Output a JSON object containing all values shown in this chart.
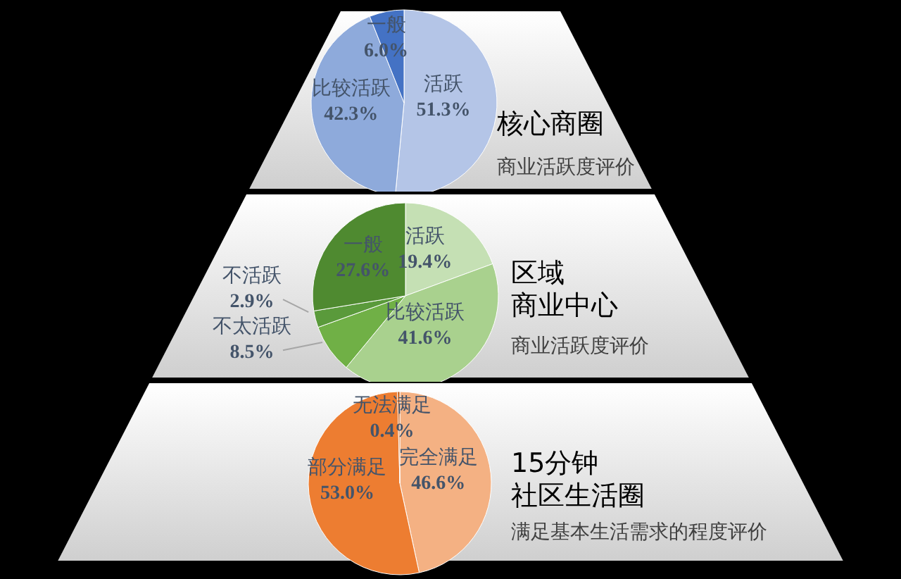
{
  "chart_data": [
    {
      "type": "pie",
      "title": "核心商圈",
      "subtitle": "商业活跃度评价",
      "categories": [
        "活跃",
        "比较活跃",
        "一般"
      ],
      "values": [
        51.3,
        42.3,
        6.0
      ],
      "value_labels": [
        "51.3%",
        "42.3%",
        "6.0%"
      ],
      "colors": [
        "#b4c5e7",
        "#8eaadb",
        "#4472c4"
      ]
    },
    {
      "type": "pie",
      "title": "区域商业中心",
      "subtitle": "商业活跃度评价",
      "categories": [
        "活跃",
        "比较活跃",
        "不太活跃",
        "不活跃",
        "一般"
      ],
      "values": [
        19.4,
        41.6,
        8.5,
        2.9,
        27.6
      ],
      "value_labels": [
        "19.4%",
        "41.6%",
        "8.5%",
        "2.9%",
        "27.6%"
      ],
      "colors": [
        "#c5e0b4",
        "#a9d18e",
        "#70b046",
        "#5a9a3b",
        "#4f8a30"
      ]
    },
    {
      "type": "pie",
      "title": "15分钟社区生活圈",
      "subtitle": "满足基本生活需求的程度评价",
      "categories": [
        "完全满足",
        "部分满足",
        "无法满足"
      ],
      "values": [
        46.6,
        53.0,
        0.4
      ],
      "value_labels": [
        "46.6%",
        "53.0%",
        "0.4%"
      ],
      "colors": [
        "#f4b183",
        "#ed7d31",
        "#c55a11"
      ]
    }
  ]
}
